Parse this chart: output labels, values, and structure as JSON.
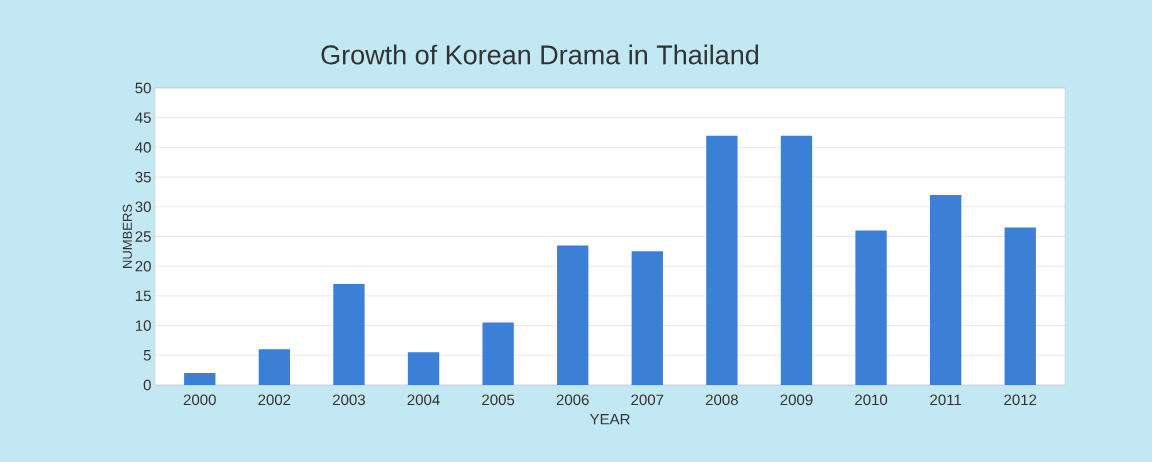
{
  "chart_data": {
    "type": "bar",
    "title": "Growth of Korean Drama in Thailand",
    "xlabel": "YEAR",
    "ylabel": "NUMBERS",
    "categories": [
      "2000",
      "2002",
      "2003",
      "2004",
      "2005",
      "2006",
      "2007",
      "2008",
      "2009",
      "2010",
      "2011",
      "2012"
    ],
    "values": [
      2,
      6,
      17,
      5.5,
      10.5,
      23.5,
      22.5,
      42,
      42,
      26,
      32,
      26.5
    ],
    "color": "#3b7fd6",
    "ylim": [
      0,
      50
    ],
    "yticks": [
      0,
      5,
      10,
      15,
      20,
      25,
      30,
      35,
      40,
      45,
      50
    ],
    "grid": "y"
  }
}
